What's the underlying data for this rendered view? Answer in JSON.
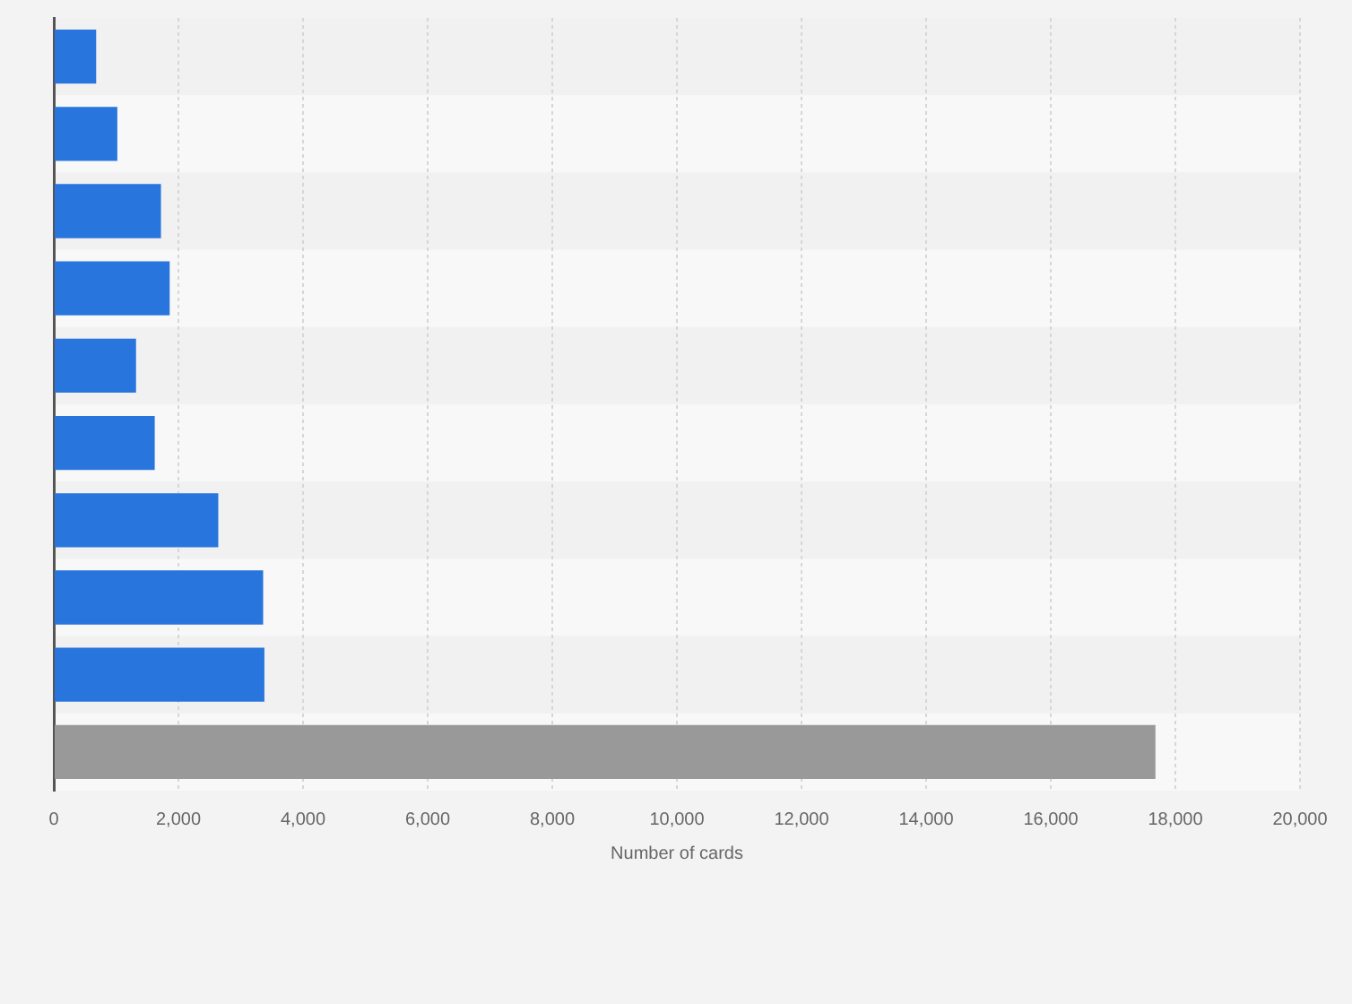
{
  "chart_data": {
    "type": "bar",
    "orientation": "horizontal",
    "categories": [
      null,
      null,
      null,
      null,
      null,
      null,
      null,
      null,
      null,
      null
    ],
    "values": [
      680,
      1020,
      1720,
      1860,
      1320,
      1620,
      2640,
      3360,
      3380,
      17680
    ],
    "colors": [
      "#2876dd",
      "#2876dd",
      "#2876dd",
      "#2876dd",
      "#2876dd",
      "#2876dd",
      "#2876dd",
      "#2876dd",
      "#2876dd",
      "#999999"
    ],
    "xlim": [
      0,
      20000
    ],
    "xticks": [
      0,
      {
        "value": 2000,
        "label": "2,000"
      },
      {
        "value": 4000,
        "label": "4,000"
      },
      {
        "value": 6000,
        "label": "6,000"
      },
      {
        "value": 8000,
        "label": "8,000"
      },
      {
        "value": 10000,
        "label": "10,000"
      },
      {
        "value": 12000,
        "label": "12,000"
      },
      {
        "value": 14000,
        "label": "14,000"
      },
      {
        "value": 16000,
        "label": "16,000"
      },
      {
        "value": 18000,
        "label": "18,000"
      },
      {
        "value": 20000,
        "label": "20,000"
      }
    ],
    "xlabel": "Number of cards",
    "grid": "x",
    "legend": false,
    "tick_labels": "x"
  }
}
